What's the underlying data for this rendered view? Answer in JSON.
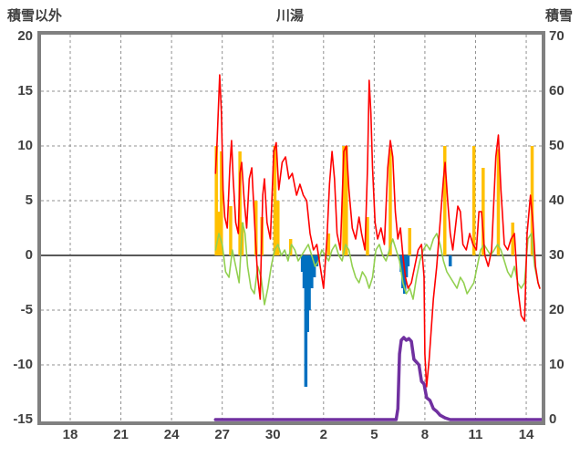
{
  "header": {
    "left_axis_title": "積雪以外",
    "station_title": "川湯",
    "right_axis_title": "積雪"
  },
  "colors": {
    "frame": "#808080",
    "grid": "#909090",
    "zero_line": "#595959",
    "text": "#404040",
    "temperature": "#FF0000",
    "green_series": "#92D050",
    "sunshine": "#FFC000",
    "precipitation": "#0070C0",
    "snow_depth": "#7030A0"
  },
  "chart_data": {
    "type": "line",
    "title": "川湯",
    "grid": true,
    "legend": "none",
    "left_axis": {
      "label": "積雪以外",
      "min": -15,
      "max": 20,
      "ticks": [
        20,
        15,
        10,
        5,
        0,
        -5,
        -10,
        -15
      ]
    },
    "right_axis": {
      "label": "積雪",
      "min": 0,
      "max": 70,
      "ticks": [
        70,
        60,
        50,
        40,
        30,
        20,
        10,
        0
      ]
    },
    "x_axis": {
      "tick_labels": [
        "18",
        "21",
        "24",
        "27",
        "30",
        "2",
        "5",
        "8",
        "11",
        "14"
      ],
      "tick_days": [
        0,
        3,
        6,
        9,
        12,
        15,
        18,
        21,
        24,
        27
      ],
      "domain_days": [
        -1.73,
        27.9
      ]
    },
    "series": [
      {
        "name": "sunshine-bars",
        "type": "bar",
        "axis": "left",
        "color": "#FFC000",
        "points": [
          [
            8.65,
            10
          ],
          [
            8.78,
            4
          ],
          [
            8.95,
            9.5
          ],
          [
            9.5,
            4.5
          ],
          [
            10.05,
            9.5
          ],
          [
            10.18,
            3
          ],
          [
            11.0,
            5
          ],
          [
            11.35,
            3.5
          ],
          [
            12.12,
            10
          ],
          [
            12.3,
            5
          ],
          [
            13.05,
            1.5
          ],
          [
            15.3,
            2
          ],
          [
            16.2,
            10
          ],
          [
            16.35,
            10
          ],
          [
            17.6,
            3.5
          ],
          [
            18.95,
            9.7
          ],
          [
            20.1,
            2.5
          ],
          [
            22.18,
            10
          ],
          [
            23.9,
            10
          ],
          [
            24.45,
            8
          ],
          [
            25.35,
            9.7
          ],
          [
            26.2,
            3
          ],
          [
            27.35,
            10
          ]
        ]
      },
      {
        "name": "precipitation-bars",
        "type": "bar",
        "axis": "left",
        "color": "#0070C0",
        "points": [
          [
            13.75,
            -1.5
          ],
          [
            13.85,
            -3
          ],
          [
            13.95,
            -12
          ],
          [
            14.05,
            -7
          ],
          [
            14.15,
            -5
          ],
          [
            14.3,
            -3
          ],
          [
            14.45,
            -2
          ],
          [
            14.6,
            -1
          ],
          [
            19.6,
            -1.5
          ],
          [
            19.7,
            -3
          ],
          [
            19.8,
            -3.5
          ],
          [
            19.9,
            -2
          ],
          [
            20.0,
            -1
          ],
          [
            22.5,
            -1
          ]
        ]
      },
      {
        "name": "green-series",
        "type": "line",
        "axis": "left",
        "color": "#92D050",
        "width": 1.6,
        "points": [
          [
            8.6,
            0.5
          ],
          [
            8.8,
            2
          ],
          [
            9.0,
            1
          ],
          [
            9.2,
            -1.5
          ],
          [
            9.4,
            -2
          ],
          [
            9.6,
            0.5
          ],
          [
            9.8,
            -1
          ],
          [
            10.0,
            -2.5
          ],
          [
            10.2,
            3
          ],
          [
            10.35,
            2
          ],
          [
            10.5,
            -1
          ],
          [
            10.7,
            -3
          ],
          [
            10.9,
            -3.5
          ],
          [
            11.1,
            -1
          ],
          [
            11.3,
            -2
          ],
          [
            11.5,
            -4.5
          ],
          [
            11.7,
            -3
          ],
          [
            11.9,
            -1
          ],
          [
            12.1,
            0.5
          ],
          [
            12.3,
            1
          ],
          [
            12.5,
            0
          ],
          [
            12.7,
            0.5
          ],
          [
            12.9,
            -0.5
          ],
          [
            13.1,
            1
          ],
          [
            13.3,
            0.5
          ],
          [
            13.5,
            -0.5
          ],
          [
            13.7,
            0
          ],
          [
            13.9,
            0.5
          ],
          [
            14.1,
            1
          ],
          [
            14.3,
            0
          ],
          [
            14.5,
            -1
          ],
          [
            14.7,
            -0.5
          ],
          [
            14.9,
            0.5
          ],
          [
            15.1,
            0
          ],
          [
            15.3,
            -0.5
          ],
          [
            15.5,
            0.5
          ],
          [
            15.7,
            1
          ],
          [
            15.9,
            0
          ],
          [
            16.1,
            -0.5
          ],
          [
            16.3,
            1
          ],
          [
            16.5,
            0.5
          ],
          [
            16.7,
            -1
          ],
          [
            16.9,
            -2
          ],
          [
            17.1,
            -2.5
          ],
          [
            17.3,
            -1.5
          ],
          [
            17.5,
            -2
          ],
          [
            17.7,
            -3
          ],
          [
            17.9,
            -2
          ],
          [
            18.1,
            0.5
          ],
          [
            18.3,
            1
          ],
          [
            18.5,
            0
          ],
          [
            18.7,
            -0.5
          ],
          [
            18.9,
            0.5
          ],
          [
            19.1,
            1.5
          ],
          [
            19.3,
            0.5
          ],
          [
            19.5,
            -0.5
          ],
          [
            19.7,
            -2.5
          ],
          [
            19.9,
            -3.5
          ],
          [
            20.1,
            -3
          ],
          [
            20.3,
            -4
          ],
          [
            20.5,
            -2
          ],
          [
            20.7,
            -0.5
          ],
          [
            20.9,
            0.5
          ],
          [
            21.1,
            1
          ],
          [
            21.3,
            0.5
          ],
          [
            21.5,
            1.5
          ],
          [
            21.7,
            2
          ],
          [
            21.9,
            1
          ],
          [
            22.1,
            -0.5
          ],
          [
            22.3,
            -1.5
          ],
          [
            22.5,
            -2
          ],
          [
            22.7,
            -2.5
          ],
          [
            22.9,
            -3
          ],
          [
            23.1,
            -2
          ],
          [
            23.3,
            -2.5
          ],
          [
            23.5,
            -3.5
          ],
          [
            23.7,
            -3
          ],
          [
            23.9,
            -2.5
          ],
          [
            24.1,
            -1
          ],
          [
            24.3,
            0.5
          ],
          [
            24.5,
            1
          ],
          [
            24.7,
            0.5
          ],
          [
            24.9,
            0
          ],
          [
            25.1,
            0.5
          ],
          [
            25.3,
            1
          ],
          [
            25.5,
            0.5
          ],
          [
            25.7,
            -0.5
          ],
          [
            25.9,
            -1.5
          ],
          [
            26.1,
            -2
          ],
          [
            26.3,
            -1
          ],
          [
            26.5,
            -2.5
          ],
          [
            26.7,
            -3
          ],
          [
            26.9,
            -2.5
          ],
          [
            27.1,
            1.5
          ],
          [
            27.3,
            2
          ],
          [
            27.5,
            -1
          ],
          [
            27.7,
            -2.5
          ],
          [
            27.8,
            -3
          ]
        ]
      },
      {
        "name": "temperature",
        "type": "line",
        "axis": "left",
        "color": "#FF0000",
        "width": 1.6,
        "points": [
          [
            8.6,
            7.5
          ],
          [
            8.7,
            10.5
          ],
          [
            8.85,
            16.5
          ],
          [
            8.95,
            13
          ],
          [
            9.05,
            6
          ],
          [
            9.15,
            3.5
          ],
          [
            9.3,
            2.5
          ],
          [
            9.45,
            8
          ],
          [
            9.55,
            10.5
          ],
          [
            9.65,
            7
          ],
          [
            9.8,
            3
          ],
          [
            9.95,
            2
          ],
          [
            10.05,
            7.5
          ],
          [
            10.15,
            8.5
          ],
          [
            10.3,
            5
          ],
          [
            10.45,
            2.5
          ],
          [
            10.6,
            7
          ],
          [
            10.75,
            8
          ],
          [
            10.95,
            2
          ],
          [
            11.1,
            -2
          ],
          [
            11.25,
            -4
          ],
          [
            11.4,
            5.5
          ],
          [
            11.5,
            7
          ],
          [
            11.65,
            3
          ],
          [
            11.85,
            1.5
          ],
          [
            12.05,
            9.5
          ],
          [
            12.2,
            10.3
          ],
          [
            12.35,
            6
          ],
          [
            12.55,
            8.5
          ],
          [
            12.75,
            9
          ],
          [
            12.95,
            7
          ],
          [
            13.15,
            7.5
          ],
          [
            13.4,
            5.5
          ],
          [
            13.6,
            6.5
          ],
          [
            13.8,
            5.5
          ],
          [
            14.0,
            5
          ],
          [
            14.2,
            2
          ],
          [
            14.4,
            0.5
          ],
          [
            14.6,
            1
          ],
          [
            14.8,
            -1
          ],
          [
            15.0,
            -3
          ],
          [
            15.2,
            1.5
          ],
          [
            15.35,
            6.5
          ],
          [
            15.5,
            9.5
          ],
          [
            15.65,
            7
          ],
          [
            15.8,
            2
          ],
          [
            16.0,
            0.5
          ],
          [
            16.2,
            9.5
          ],
          [
            16.35,
            10
          ],
          [
            16.5,
            6
          ],
          [
            16.7,
            2.5
          ],
          [
            16.9,
            1.5
          ],
          [
            17.1,
            3.5
          ],
          [
            17.25,
            2
          ],
          [
            17.45,
            0.5
          ],
          [
            17.6,
            8
          ],
          [
            17.7,
            16
          ],
          [
            17.8,
            13
          ],
          [
            17.9,
            8
          ],
          [
            18.05,
            3
          ],
          [
            18.2,
            1.5
          ],
          [
            18.4,
            2.5
          ],
          [
            18.6,
            1
          ],
          [
            18.8,
            8
          ],
          [
            18.95,
            10.5
          ],
          [
            19.1,
            9
          ],
          [
            19.25,
            4
          ],
          [
            19.4,
            1.5
          ],
          [
            19.55,
            2.5
          ],
          [
            19.7,
            0
          ],
          [
            19.85,
            -2
          ],
          [
            20.0,
            -3
          ],
          [
            20.2,
            -2.5
          ],
          [
            20.4,
            -1
          ],
          [
            20.6,
            0.5
          ],
          [
            20.8,
            1
          ],
          [
            20.95,
            -2
          ],
          [
            21.0,
            -9
          ],
          [
            21.1,
            -12
          ],
          [
            21.25,
            -9.5
          ],
          [
            21.5,
            -4
          ],
          [
            21.7,
            -1
          ],
          [
            21.9,
            3
          ],
          [
            22.1,
            7
          ],
          [
            22.2,
            8.5
          ],
          [
            22.35,
            5
          ],
          [
            22.5,
            2
          ],
          [
            22.65,
            0.5
          ],
          [
            22.8,
            2.5
          ],
          [
            22.95,
            4.5
          ],
          [
            23.1,
            4
          ],
          [
            23.25,
            1
          ],
          [
            23.45,
            0.5
          ],
          [
            23.65,
            2
          ],
          [
            23.85,
            1
          ],
          [
            24.05,
            0.5
          ],
          [
            24.2,
            4
          ],
          [
            24.35,
            4
          ],
          [
            24.55,
            0
          ],
          [
            24.75,
            -1
          ],
          [
            24.95,
            0.5
          ],
          [
            25.2,
            9
          ],
          [
            25.35,
            11
          ],
          [
            25.5,
            6
          ],
          [
            25.7,
            1
          ],
          [
            25.9,
            0.5
          ],
          [
            26.1,
            1.5
          ],
          [
            26.3,
            2
          ],
          [
            26.5,
            -3
          ],
          [
            26.7,
            -5.5
          ],
          [
            26.9,
            -6
          ],
          [
            27.05,
            2
          ],
          [
            27.25,
            5.5
          ],
          [
            27.4,
            3
          ],
          [
            27.55,
            -1
          ],
          [
            27.7,
            -2.5
          ],
          [
            27.8,
            -3
          ]
        ]
      },
      {
        "name": "snow-depth",
        "type": "line",
        "axis": "right",
        "color": "#7030A0",
        "width": 3.5,
        "points": [
          [
            8.6,
            0
          ],
          [
            19.3,
            0
          ],
          [
            19.4,
            2
          ],
          [
            19.5,
            12
          ],
          [
            19.6,
            14.5
          ],
          [
            19.75,
            15
          ],
          [
            19.9,
            14.5
          ],
          [
            20.05,
            14.8
          ],
          [
            20.2,
            14.3
          ],
          [
            20.35,
            11
          ],
          [
            20.5,
            10.5
          ],
          [
            20.65,
            10
          ],
          [
            20.8,
            7
          ],
          [
            20.95,
            6.5
          ],
          [
            21.1,
            4
          ],
          [
            21.3,
            3.5
          ],
          [
            21.5,
            2
          ],
          [
            21.7,
            1.5
          ],
          [
            21.9,
            0.8
          ],
          [
            22.2,
            0.3
          ],
          [
            22.5,
            0
          ],
          [
            27.9,
            0
          ]
        ]
      }
    ]
  }
}
